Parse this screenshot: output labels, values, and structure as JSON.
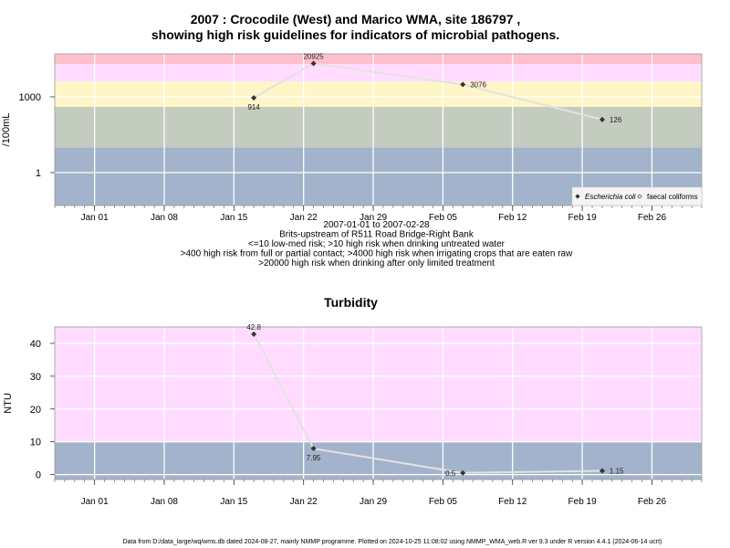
{
  "page": {
    "footer": "Data from D:/data_large/wq/wms.db dated 2024-08-27, mainly NMMP programme. Plotted on 2024-10-25 11:08:02 using NMMP_WMA_web.R ver 9.3 under R version 4.4.1 (2024-06-14 ucrt)"
  },
  "chart_data": [
    {
      "type": "line",
      "title_lines": [
        "2007 : Crocodile (West) and Marico WMA, site 186797 ,",
        "showing high risk guidelines for indicators of microbial pathogens."
      ],
      "xlabel_lines": [
        "2007-01-01 to 2007-02-28",
        "Brits-upstream of R511 Road Bridge-Right Bank",
        "<=10 low-med risk; >10 high risk when drinking untreated water",
        ">400 high risk from full or partial contact; >4000 high risk when irrigating crops that are eaten raw",
        ">20000 high risk when drinking after only limited treatment"
      ],
      "ylabel": "/100mL",
      "y_scale": "log10",
      "ylim": [
        0.05,
        50000
      ],
      "xlim": [
        "2006-12-28",
        "2007-03-03"
      ],
      "x_ticks": [
        {
          "date": "2007-01-01",
          "label": "Jan 01"
        },
        {
          "date": "2007-01-08",
          "label": "Jan 08"
        },
        {
          "date": "2007-01-15",
          "label": "Jan 15"
        },
        {
          "date": "2007-01-22",
          "label": "Jan 22"
        },
        {
          "date": "2007-01-29",
          "label": "Jan 29"
        },
        {
          "date": "2007-02-05",
          "label": "Feb 05"
        },
        {
          "date": "2007-02-12",
          "label": "Feb 12"
        },
        {
          "date": "2007-02-19",
          "label": "Feb 19"
        },
        {
          "date": "2007-02-26",
          "label": "Feb 26"
        }
      ],
      "y_ticks": [
        {
          "value": 1,
          "label": "1"
        },
        {
          "value": 1000,
          "label": "1000"
        }
      ],
      "grid": true,
      "bands": [
        {
          "from": 0.05,
          "to": 10,
          "color": "#a3b3cb"
        },
        {
          "from": 10,
          "to": 400,
          "color": "#c4ccc0"
        },
        {
          "from": 400,
          "to": 4000,
          "color": "#fff6c8"
        },
        {
          "from": 4000,
          "to": 20000,
          "color": "#ffdcff"
        },
        {
          "from": 20000,
          "to": 50000,
          "color": "#ffc0cc"
        }
      ],
      "series": [
        {
          "name": "Escherichia coli",
          "marker": "filled-diamond",
          "color": "#333333",
          "points": [
            {
              "x": "2007-01-17",
              "y": 914,
              "label": "914",
              "label_pos": "below"
            },
            {
              "x": "2007-01-23",
              "y": 20925,
              "label": "20925",
              "label_pos": "above"
            },
            {
              "x": "2007-02-07",
              "y": 3076,
              "label": "3076",
              "label_pos": "right"
            },
            {
              "x": "2007-02-21",
              "y": 126,
              "label": "126",
              "label_pos": "right"
            }
          ]
        }
      ],
      "legend": {
        "position": "bottom-right",
        "entries": [
          {
            "label": "Escherichia coli",
            "marker": "filled-diamond",
            "italic": true
          },
          {
            "label": "faecal coliforms",
            "marker": "open-diamond",
            "italic": false
          }
        ]
      }
    },
    {
      "type": "line",
      "title_lines": [
        "Turbidity"
      ],
      "xlabel_lines": [],
      "ylabel": "NTU",
      "y_scale": "linear",
      "ylim": [
        -1.5,
        45
      ],
      "xlim": [
        "2006-12-28",
        "2007-03-03"
      ],
      "x_ticks": [
        {
          "date": "2007-01-01",
          "label": "Jan 01"
        },
        {
          "date": "2007-01-08",
          "label": "Jan 08"
        },
        {
          "date": "2007-01-15",
          "label": "Jan 15"
        },
        {
          "date": "2007-01-22",
          "label": "Jan 22"
        },
        {
          "date": "2007-01-29",
          "label": "Jan 29"
        },
        {
          "date": "2007-02-05",
          "label": "Feb 05"
        },
        {
          "date": "2007-02-12",
          "label": "Feb 12"
        },
        {
          "date": "2007-02-19",
          "label": "Feb 19"
        },
        {
          "date": "2007-02-26",
          "label": "Feb 26"
        }
      ],
      "y_ticks": [
        {
          "value": 0,
          "label": "0"
        },
        {
          "value": 10,
          "label": "10"
        },
        {
          "value": 20,
          "label": "20"
        },
        {
          "value": 30,
          "label": "30"
        },
        {
          "value": 40,
          "label": "40"
        }
      ],
      "grid": true,
      "bands": [
        {
          "from": -1.5,
          "to": 10,
          "color": "#a3b3cb"
        },
        {
          "from": 10,
          "to": 45,
          "color": "#ffdcff"
        }
      ],
      "series": [
        {
          "name": "",
          "marker": "filled-diamond",
          "color": "#333333",
          "points": [
            {
              "x": "2007-01-17",
              "y": 42.8,
              "label": "42.8",
              "label_pos": "above"
            },
            {
              "x": "2007-01-23",
              "y": 7.95,
              "label": "7.95",
              "label_pos": "below"
            },
            {
              "x": "2007-02-07",
              "y": 0.5,
              "label": "0.5",
              "label_pos": "left"
            },
            {
              "x": "2007-02-21",
              "y": 1.15,
              "label": "1.15",
              "label_pos": "right"
            }
          ]
        }
      ],
      "legend": null
    }
  ]
}
